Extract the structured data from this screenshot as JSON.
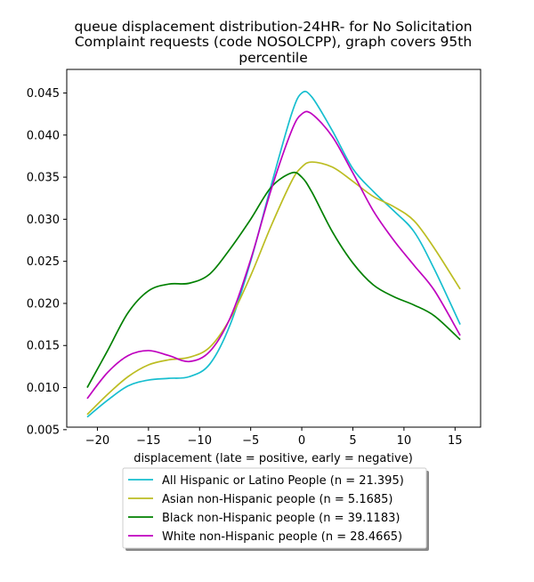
{
  "chart_data": {
    "type": "line",
    "title_lines": [
      "queue displacement distribution-24HR-  for No Solicitation",
      "Complaint  requests (code NOSOLCPP), graph covers 95th",
      "percentile"
    ],
    "xlabel": "displacement (late = positive, early = negative)",
    "ylabel": "",
    "xlim": [
      -23.0,
      17.5
    ],
    "ylim": [
      0.0053,
      0.0478
    ],
    "xticks": [
      -20,
      -15,
      -10,
      -5,
      0,
      5,
      10,
      15
    ],
    "xtick_labels": [
      "−20",
      "−15",
      "−10",
      "−5",
      "0",
      "5",
      "10",
      "15"
    ],
    "yticks": [
      0.005,
      0.01,
      0.015,
      0.02,
      0.025,
      0.03,
      0.035,
      0.04,
      0.045
    ],
    "ytick_labels": [
      "0.005",
      "0.010",
      "0.015",
      "0.020",
      "0.025",
      "0.030",
      "0.035",
      "0.040",
      "0.045"
    ],
    "grid": false,
    "legend_position": "below",
    "series": [
      {
        "name": "All Hispanic or Latino People (n = 21.395)",
        "color": "#17becf",
        "x": [
          -21,
          -19,
          -17,
          -15,
          -13,
          -11,
          -9,
          -7,
          -5,
          -3,
          -1,
          0,
          1,
          3,
          5,
          7,
          9,
          11,
          13,
          15.5
        ],
        "y": [
          0.0065,
          0.0085,
          0.0102,
          0.0109,
          0.0111,
          0.0113,
          0.0128,
          0.0175,
          0.025,
          0.034,
          0.0425,
          0.045,
          0.0445,
          0.0405,
          0.036,
          0.0333,
          0.031,
          0.0285,
          0.024,
          0.0175
        ]
      },
      {
        "name": "Asian non-Hispanic people (n = 5.1685)",
        "color": "#bcbd22",
        "x": [
          -21,
          -19,
          -17,
          -15,
          -13,
          -11,
          -9,
          -7,
          -5,
          -3,
          -1,
          0,
          1,
          3,
          5,
          7,
          9,
          11,
          13,
          15.5
        ],
        "y": [
          0.0068,
          0.0092,
          0.0113,
          0.0127,
          0.0133,
          0.0136,
          0.0148,
          0.0182,
          0.0233,
          0.0292,
          0.0345,
          0.0362,
          0.0368,
          0.0362,
          0.0345,
          0.0327,
          0.0315,
          0.0298,
          0.0265,
          0.0217
        ]
      },
      {
        "name": "Black non-Hispanic people (n = 39.1183)",
        "color": "#008000",
        "x": [
          -21,
          -19,
          -17,
          -15,
          -13,
          -11,
          -9,
          -7,
          -5,
          -3,
          -1,
          0,
          1,
          3,
          5,
          7,
          9,
          11,
          13,
          15.5
        ],
        "y": [
          0.01,
          0.0144,
          0.0189,
          0.0215,
          0.0223,
          0.0224,
          0.0235,
          0.0265,
          0.03,
          0.0338,
          0.0355,
          0.035,
          0.0332,
          0.0285,
          0.0248,
          0.0222,
          0.0208,
          0.0198,
          0.0185,
          0.0157
        ]
      },
      {
        "name": "White non-Hispanic people (n = 28.4665)",
        "color": "#bf00bf",
        "x": [
          -21,
          -19,
          -17,
          -15,
          -13,
          -11,
          -9,
          -7,
          -5,
          -3,
          -1,
          0,
          1,
          3,
          5,
          7,
          9,
          11,
          13,
          15.5
        ],
        "y": [
          0.0087,
          0.0118,
          0.0138,
          0.0144,
          0.0138,
          0.0131,
          0.0143,
          0.0183,
          0.0252,
          0.0335,
          0.0405,
          0.0425,
          0.0425,
          0.0398,
          0.0355,
          0.031,
          0.0275,
          0.0245,
          0.0215,
          0.0162
        ]
      }
    ]
  }
}
